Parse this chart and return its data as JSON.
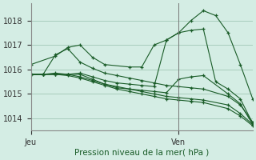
{
  "background_color": "#d4ede4",
  "grid_color": "#a8ccbc",
  "line_color": "#1a5c28",
  "marker_color": "#1a5c28",
  "ylabel_ticks": [
    1014,
    1015,
    1016,
    1017,
    1018
  ],
  "xlabel": "Pression niveau de la mer( hPa )",
  "x_jeu_label": "Jeu",
  "x_ven_label": "Ven",
  "xlim": [
    0,
    54
  ],
  "ylim": [
    1013.5,
    1018.7
  ],
  "jeu_x": 0,
  "ven_x": 36,
  "series": [
    [
      0,
      1016.2,
      6,
      1016.55,
      9,
      1016.9,
      12,
      1017.0,
      15,
      1016.5,
      18,
      1016.2,
      24,
      1016.1,
      27,
      1016.1,
      30,
      1017.0,
      33,
      1017.2,
      36,
      1017.5,
      39,
      1018.0,
      42,
      1018.4,
      45,
      1018.2,
      48,
      1017.5,
      51,
      1016.2,
      54,
      1014.8
    ],
    [
      0,
      1015.8,
      3,
      1015.8,
      6,
      1015.8,
      9,
      1015.8,
      12,
      1015.85,
      15,
      1015.7,
      18,
      1015.55,
      21,
      1015.45,
      24,
      1015.4,
      27,
      1015.35,
      30,
      1015.3,
      33,
      1017.2,
      36,
      1017.5,
      39,
      1017.6,
      42,
      1017.65,
      45,
      1015.5,
      48,
      1015.2,
      51,
      1014.8,
      54,
      1013.8
    ],
    [
      0,
      1015.8,
      3,
      1015.8,
      6,
      1015.8,
      9,
      1015.8,
      12,
      1015.8,
      15,
      1015.6,
      18,
      1015.4,
      21,
      1015.25,
      24,
      1015.2,
      27,
      1015.15,
      30,
      1015.1,
      33,
      1015.05,
      36,
      1015.6,
      39,
      1015.7,
      42,
      1015.75,
      48,
      1015.0,
      51,
      1014.6,
      54,
      1013.75
    ],
    [
      0,
      1015.8,
      3,
      1015.8,
      6,
      1016.6,
      9,
      1016.85,
      12,
      1016.3,
      15,
      1016.05,
      18,
      1015.85,
      21,
      1015.75,
      24,
      1015.65,
      27,
      1015.55,
      30,
      1015.45,
      33,
      1015.35,
      36,
      1015.3,
      39,
      1015.25,
      42,
      1015.2,
      48,
      1014.9,
      51,
      1014.55,
      54,
      1013.85
    ],
    [
      0,
      1015.8,
      3,
      1015.8,
      6,
      1015.85,
      9,
      1015.8,
      12,
      1015.7,
      15,
      1015.55,
      18,
      1015.4,
      21,
      1015.3,
      24,
      1015.2,
      27,
      1015.1,
      30,
      1015.0,
      33,
      1014.9,
      36,
      1014.85,
      39,
      1014.8,
      42,
      1014.75,
      48,
      1014.55,
      51,
      1014.2,
      54,
      1013.75
    ],
    [
      0,
      1015.8,
      3,
      1015.8,
      6,
      1015.8,
      9,
      1015.75,
      12,
      1015.65,
      15,
      1015.5,
      18,
      1015.35,
      21,
      1015.2,
      24,
      1015.1,
      27,
      1015.0,
      30,
      1014.9,
      33,
      1014.8,
      36,
      1014.75,
      39,
      1014.7,
      42,
      1014.65,
      48,
      1014.4,
      51,
      1014.1,
      54,
      1013.7
    ]
  ]
}
